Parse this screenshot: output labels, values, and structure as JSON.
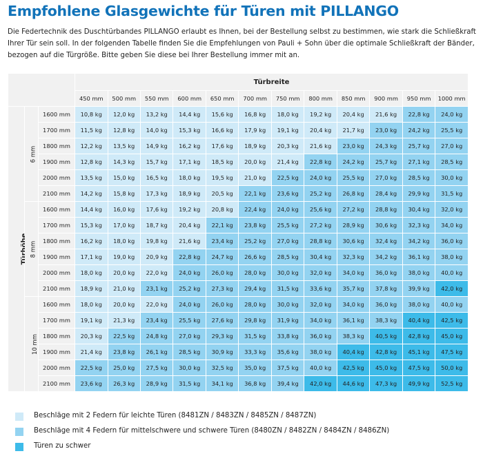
{
  "title": "Empfohlene Glasgewichte für Türen mit PILLANGO",
  "intro": "Die Federtechnik des Duschtürbandes PILLANGO erlaubt es Ihnen, bei der Bestellung selbst zu bestimmen, wie stark die Schließkraft Ihrer Tür sein soll. In der folgenden Tabelle finden Sie die Empfehlungen von Pauli + Sohn über die optimale Schließkraft der Bänder, bezogen auf die Türgröße. Bitte geben Sie diese bei Ihrer Bestellung immer mit an.",
  "colors": {
    "title": "#1273b9",
    "level1": "#cfeaf8",
    "level2": "#93d3f1",
    "level3": "#3dbbe9",
    "header": "#f1f1f1"
  },
  "table": {
    "width_label": "Türbreite",
    "height_label": "Türhöhe",
    "widths": [
      "450 mm",
      "500 mm",
      "550 mm",
      "600 mm",
      "650 mm",
      "700 mm",
      "750 mm",
      "800 mm",
      "850 mm",
      "900 mm",
      "950 mm",
      "1000 mm"
    ],
    "groups": [
      {
        "label": "6 mm",
        "rows": [
          {
            "height": "1600 mm",
            "values": [
              "10,8 kg",
              "12,0 kg",
              "13,2 kg",
              "14,4 kg",
              "15,6 kg",
              "16,8 kg",
              "18,0 kg",
              "19,2 kg",
              "20,4 kg",
              "21,6 kg",
              "22,8 kg",
              "24,0 kg"
            ],
            "levels": [
              1,
              1,
              1,
              1,
              1,
              1,
              1,
              1,
              1,
              1,
              2,
              2
            ]
          },
          {
            "height": "1700 mm",
            "values": [
              "11,5 kg",
              "12,8 kg",
              "14,0 kg",
              "15,3 kg",
              "16,6 kg",
              "17,9 kg",
              "19,1 kg",
              "20,4 kg",
              "21,7 kg",
              "23,0 kg",
              "24,2 kg",
              "25,5 kg"
            ],
            "levels": [
              1,
              1,
              1,
              1,
              1,
              1,
              1,
              1,
              1,
              2,
              2,
              2
            ]
          },
          {
            "height": "1800 mm",
            "values": [
              "12,2 kg",
              "13,5 kg",
              "14,9 kg",
              "16,2 kg",
              "17,6 kg",
              "18,9 kg",
              "20,3 kg",
              "21,6 kg",
              "23,0 kg",
              "24,3 kg",
              "25,7 kg",
              "27,0 kg"
            ],
            "levels": [
              1,
              1,
              1,
              1,
              1,
              1,
              1,
              1,
              2,
              2,
              2,
              2
            ]
          },
          {
            "height": "1900 mm",
            "values": [
              "12,8 kg",
              "14,3 kg",
              "15,7 kg",
              "17,1 kg",
              "18,5 kg",
              "20,0 kg",
              "21,4 kg",
              "22,8 kg",
              "24,2 kg",
              "25,7 kg",
              "27,1 kg",
              "28,5 kg"
            ],
            "levels": [
              1,
              1,
              1,
              1,
              1,
              1,
              1,
              2,
              2,
              2,
              2,
              2
            ]
          },
          {
            "height": "2000 mm",
            "values": [
              "13,5 kg",
              "15,0 kg",
              "16,5 kg",
              "18,0 kg",
              "19,5 kg",
              "21,0 kg",
              "22,5 kg",
              "24,0 kg",
              "25,5 kg",
              "27,0 kg",
              "28,5 kg",
              "30,0 kg"
            ],
            "levels": [
              1,
              1,
              1,
              1,
              1,
              1,
              2,
              2,
              2,
              2,
              2,
              2
            ]
          },
          {
            "height": "2100 mm",
            "values": [
              "14,2 kg",
              "15,8 kg",
              "17,3 kg",
              "18,9 kg",
              "20,5 kg",
              "22,1 kg",
              "23,6 kg",
              "25,2 kg",
              "26,8 kg",
              "28,4 kg",
              "29,9 kg",
              "31,5 kg"
            ],
            "levels": [
              1,
              1,
              1,
              1,
              1,
              2,
              2,
              2,
              2,
              2,
              2,
              2
            ]
          }
        ]
      },
      {
        "label": "8 mm",
        "rows": [
          {
            "height": "1600 mm",
            "values": [
              "14,4 kg",
              "16,0 kg",
              "17,6 kg",
              "19,2 kg",
              "20,8 kg",
              "22,4 kg",
              "24,0 kg",
              "25,6 kg",
              "27,2 kg",
              "28,8 kg",
              "30,4 kg",
              "32,0 kg"
            ],
            "levels": [
              1,
              1,
              1,
              1,
              1,
              2,
              2,
              2,
              2,
              2,
              2,
              2
            ]
          },
          {
            "height": "1700 mm",
            "values": [
              "15,3 kg",
              "17,0 kg",
              "18,7 kg",
              "20,4 kg",
              "22,1 kg",
              "23,8 kg",
              "25,5 kg",
              "27,2 kg",
              "28,9 kg",
              "30,6 kg",
              "32,3 kg",
              "34,0 kg"
            ],
            "levels": [
              1,
              1,
              1,
              1,
              2,
              2,
              2,
              2,
              2,
              2,
              2,
              2
            ]
          },
          {
            "height": "1800 mm",
            "values": [
              "16,2 kg",
              "18,0 kg",
              "19,8 kg",
              "21,6 kg",
              "23,4 kg",
              "25,2 kg",
              "27,0 kg",
              "28,8 kg",
              "30,6 kg",
              "32,4 kg",
              "34,2 kg",
              "36,0 kg"
            ],
            "levels": [
              1,
              1,
              1,
              1,
              2,
              2,
              2,
              2,
              2,
              2,
              2,
              2
            ]
          },
          {
            "height": "1900 mm",
            "values": [
              "17,1 kg",
              "19,0 kg",
              "20,9 kg",
              "22,8 kg",
              "24,7 kg",
              "26,6 kg",
              "28,5 kg",
              "30,4 kg",
              "32,3 kg",
              "34,2 kg",
              "36,1 kg",
              "38,0 kg"
            ],
            "levels": [
              1,
              1,
              1,
              2,
              2,
              2,
              2,
              2,
              2,
              2,
              2,
              2
            ]
          },
          {
            "height": "2000 mm",
            "values": [
              "18,0 kg",
              "20,0 kg",
              "22,0 kg",
              "24,0 kg",
              "26,0 kg",
              "28,0 kg",
              "30,0 kg",
              "32,0 kg",
              "34,0 kg",
              "36,0 kg",
              "38,0 kg",
              "40,0 kg"
            ],
            "levels": [
              1,
              1,
              1,
              2,
              2,
              2,
              2,
              2,
              2,
              2,
              2,
              2
            ]
          },
          {
            "height": "2100 mm",
            "values": [
              "18,9 kg",
              "21,0 kg",
              "23,1 kg",
              "25,2 kg",
              "27,3 kg",
              "29,4 kg",
              "31,5 kg",
              "33,6 kg",
              "35,7 kg",
              "37,8 kg",
              "39,9 kg",
              "42,0 kg"
            ],
            "levels": [
              1,
              1,
              2,
              2,
              2,
              2,
              2,
              2,
              2,
              2,
              2,
              3
            ]
          }
        ]
      },
      {
        "label": "10 mm",
        "rows": [
          {
            "height": "1600 mm",
            "values": [
              "18,0 kg",
              "20,0 kg",
              "22,0 kg",
              "24,0 kg",
              "26,0 kg",
              "28,0 kg",
              "30,0 kg",
              "32,0 kg",
              "34,0 kg",
              "36,0 kg",
              "38,0 kg",
              "40,0 kg"
            ],
            "levels": [
              1,
              1,
              1,
              2,
              2,
              2,
              2,
              2,
              2,
              2,
              2,
              2
            ]
          },
          {
            "height": "1700 mm",
            "values": [
              "19,1 kg",
              "21,3 kg",
              "23,4 kg",
              "25,5 kg",
              "27,6 kg",
              "29,8 kg",
              "31,9 kg",
              "34,0 kg",
              "36,1 kg",
              "38,3 kg",
              "40,4 kg",
              "42,5 kg"
            ],
            "levels": [
              1,
              1,
              2,
              2,
              2,
              2,
              2,
              2,
              2,
              2,
              3,
              3
            ]
          },
          {
            "height": "1800 mm",
            "values": [
              "20,3 kg",
              "22,5 kg",
              "24,8 kg",
              "27,0 kg",
              "29,3 kg",
              "31,5 kg",
              "33,8 kg",
              "36,0 kg",
              "38,3 kg",
              "40,5 kg",
              "42,8 kg",
              "45,0 kg"
            ],
            "levels": [
              1,
              2,
              2,
              2,
              2,
              2,
              2,
              2,
              2,
              3,
              3,
              3
            ]
          },
          {
            "height": "1900 mm",
            "values": [
              "21,4 kg",
              "23,8 kg",
              "26,1 kg",
              "28,5 kg",
              "30,9 kg",
              "33,3 kg",
              "35,6 kg",
              "38,0 kg",
              "40,4 kg",
              "42,8 kg",
              "45,1 kg",
              "47,5 kg"
            ],
            "levels": [
              1,
              2,
              2,
              2,
              2,
              2,
              2,
              2,
              3,
              3,
              3,
              3
            ]
          },
          {
            "height": "2000 mm",
            "values": [
              "22,5 kg",
              "25,0 kg",
              "27,5 kg",
              "30,0 kg",
              "32,5 kg",
              "35,0 kg",
              "37,5 kg",
              "40,0 kg",
              "42,5 kg",
              "45,0 kg",
              "47,5 kg",
              "50,0 kg"
            ],
            "levels": [
              2,
              2,
              2,
              2,
              2,
              2,
              2,
              2,
              3,
              3,
              3,
              3
            ]
          },
          {
            "height": "2100 mm",
            "values": [
              "23,6 kg",
              "26,3 kg",
              "28,9 kg",
              "31,5 kg",
              "34,1 kg",
              "36,8 kg",
              "39,4 kg",
              "42,0 kg",
              "44,6 kg",
              "47,3 kg",
              "49,9 kg",
              "52,5 kg"
            ],
            "levels": [
              2,
              2,
              2,
              2,
              2,
              2,
              2,
              3,
              3,
              3,
              3,
              3
            ]
          }
        ]
      }
    ]
  },
  "legend": [
    {
      "level": 1,
      "text": "Beschläge mit 2 Federn für leichte Türen (8481ZN / 8483ZN / 8485ZN / 8487ZN)"
    },
    {
      "level": 2,
      "text": "Beschläge mit 4 Federn für mittelschwere und schwere Türen (8480ZN / 8482ZN / 8484ZN / 8486ZN)"
    },
    {
      "level": 3,
      "text": "Türen zu schwer"
    }
  ]
}
